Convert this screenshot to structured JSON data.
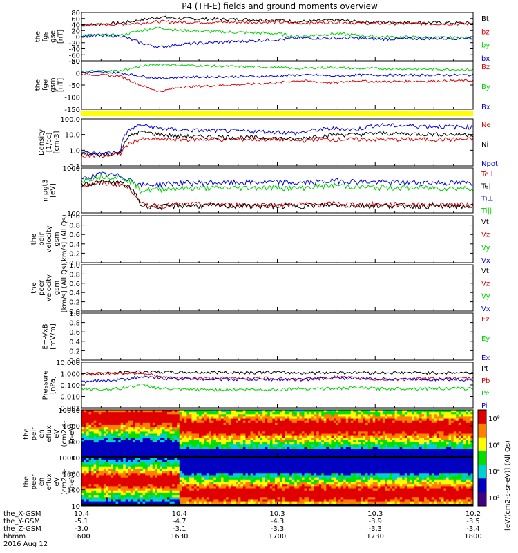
{
  "title": "P4 (TH-E) fields and ground moments overview",
  "colors": {
    "black": "#000000",
    "red": "#e00000",
    "green": "#00d000",
    "blue": "#0000e0",
    "yellow": "#ffff00"
  },
  "panels": [
    {
      "id": "fgs-gse",
      "ylabel_lines": [
        "the",
        "fgs",
        "gse",
        "[nT]"
      ],
      "ticks": [
        "80",
        "60",
        "40",
        "20",
        "0",
        "-20",
        "-40",
        "-60",
        "-80"
      ],
      "legend": [
        {
          "label": "Bt",
          "color": "black"
        },
        {
          "label": "bz",
          "color": "red"
        },
        {
          "label": "by",
          "color": "green"
        },
        {
          "label": "bx",
          "color": "blue"
        }
      ]
    },
    {
      "id": "fge-gsm",
      "ylabel_lines": [
        "the",
        "fge",
        "gsm",
        "[nT]"
      ],
      "ticks": [
        "50",
        "0",
        "-50",
        "-100",
        "-150"
      ],
      "legend": [
        {
          "label": "Bz",
          "color": "red"
        },
        {
          "label": "By",
          "color": "green"
        },
        {
          "label": "Bx",
          "color": "blue"
        }
      ]
    },
    {
      "id": "flag-bar",
      "ylabel_lines": [],
      "ticks": [],
      "legend": []
    },
    {
      "id": "density",
      "ylabel_lines": [
        "Density",
        "[1/cc]",
        "[cm-3]"
      ],
      "ticks": [
        "100.0",
        "10.0",
        "1.0",
        "0.1"
      ],
      "legend": [
        {
          "label": "Ne",
          "color": "red"
        },
        {
          "label": "Ni",
          "color": "black"
        },
        {
          "label": "Npot",
          "color": "blue"
        }
      ]
    },
    {
      "id": "temperature",
      "ylabel_lines": [
        "mpgt3",
        "[eV]"
      ],
      "ticks": [
        "1000",
        "100"
      ],
      "legend": [
        {
          "label": "Te⊥",
          "color": "red"
        },
        {
          "label": "Te||",
          "color": "black"
        },
        {
          "label": "Ti⊥",
          "color": "blue"
        },
        {
          "label": "Ti||",
          "color": "green"
        }
      ]
    },
    {
      "id": "peir-velocity",
      "ylabel_lines": [
        "the",
        "peir",
        "velocity",
        "gsm",
        "[km/s] (All Qs)"
      ],
      "ticks": [
        "1.0",
        "0.8",
        "0.6",
        "0.4",
        "0.2",
        "0.0"
      ],
      "legend": [
        {
          "label": "Vt",
          "color": "black"
        },
        {
          "label": "Vz",
          "color": "red"
        },
        {
          "label": "Vy",
          "color": "green"
        },
        {
          "label": "Vx",
          "color": "blue"
        }
      ]
    },
    {
      "id": "peer-velocity",
      "ylabel_lines": [
        "the",
        "peer",
        "velocity",
        "gsm",
        "[km/s] (All Qs)"
      ],
      "ticks": [
        "1.0",
        "0.8",
        "0.6",
        "0.4",
        "0.2",
        "0.0"
      ],
      "legend": [
        {
          "label": "Vt",
          "color": "black"
        },
        {
          "label": "Vz",
          "color": "red"
        },
        {
          "label": "Vy",
          "color": "green"
        },
        {
          "label": "Vx",
          "color": "blue"
        }
      ]
    },
    {
      "id": "efield",
      "ylabel_lines": [
        "E=-VxB",
        "[mV/m]"
      ],
      "ticks": [
        "1.0",
        "0.8",
        "0.6",
        "0.4",
        "0.2",
        "0.0"
      ],
      "legend": [
        {
          "label": "Ez",
          "color": "red"
        },
        {
          "label": "Ey",
          "color": "green"
        },
        {
          "label": "Ex",
          "color": "blue"
        }
      ]
    },
    {
      "id": "pressure",
      "ylabel_lines": [
        "Pressure",
        "[nPa]"
      ],
      "ticks": [
        "10.000",
        "1.000",
        "0.100",
        "0.010",
        "0.001"
      ],
      "legend": [
        {
          "label": "Pt",
          "color": "black"
        },
        {
          "label": "Pb",
          "color": "red"
        },
        {
          "label": "Pe",
          "color": "green"
        },
        {
          "label": "Pi",
          "color": "blue"
        }
      ]
    },
    {
      "id": "peir-spec",
      "ylabel_lines": [
        "the",
        "peir",
        "en",
        "eflux",
        "eV",
        "(cm2-s-",
        "sr-eV)"
      ],
      "ticks": [
        "10000",
        "1000",
        "100",
        "10"
      ],
      "legend": []
    },
    {
      "id": "peer-spec",
      "ylabel_lines": [
        "the",
        "peer",
        "en",
        "eflux",
        "eV",
        "(cm2-s-",
        "sr-eV)"
      ],
      "ticks": [
        "10000",
        "1000",
        "100",
        "10"
      ],
      "legend": []
    }
  ],
  "colorbar": {
    "ticks": [
      "10⁸",
      "10⁶",
      "10⁴",
      "10²"
    ],
    "label": "[eV/(cm2-s-sr-eV)] (All Qs)"
  },
  "orbit_rows": [
    {
      "label": "the_X-GSM",
      "values": [
        "10.4",
        "10.4",
        "10.3",
        "10.3",
        "10.2"
      ]
    },
    {
      "label": "the_Y-GSM",
      "values": [
        "-5.1",
        "-4.7",
        "-4.3",
        "-3.9",
        "-3.5"
      ]
    },
    {
      "label": "the_Z-GSM",
      "values": [
        "-3.0",
        "-3.1",
        "-3.3",
        "-3.3",
        "-3.4"
      ]
    },
    {
      "label": "hhmm",
      "values": [
        "1600",
        "1630",
        "1700",
        "1730",
        "1800"
      ]
    }
  ],
  "date": "2016 Aug 12",
  "chart_data": {
    "type": "line",
    "title": "P4 (TH-E) fields and ground moments overview",
    "x": [
      "1600",
      "1630",
      "1700",
      "1730",
      "1800"
    ],
    "xlabel": "hhmm",
    "panels": [
      {
        "name": "the fgs gse [nT]",
        "ylim": [
          -80,
          80
        ],
        "series": [
          {
            "name": "Bt",
            "x": [
              1600,
              1610,
              1620,
              1630,
              1640,
              1650,
              1700,
              1710,
              1720,
              1730,
              1740,
              1750,
              1800
            ],
            "values": [
              38,
              42,
              45,
              55,
              65,
              60,
              55,
              50,
              52,
              55,
              50,
              48,
              45
            ]
          },
          {
            "name": "bz",
            "x": [
              1600,
              1610,
              1620,
              1630,
              1640,
              1650,
              1700,
              1710,
              1720,
              1730,
              1740,
              1750,
              1800
            ],
            "values": [
              38,
              40,
              42,
              45,
              50,
              48,
              48,
              45,
              46,
              48,
              45,
              44,
              42
            ]
          },
          {
            "name": "by",
            "x": [
              1600,
              1610,
              1620,
              1630,
              1640,
              1650,
              1700,
              1710,
              1720,
              1730,
              1740,
              1750,
              1800
            ],
            "values": [
              5,
              5,
              4,
              20,
              30,
              20,
              10,
              0,
              5,
              10,
              5,
              0,
              -5
            ]
          },
          {
            "name": "bx",
            "x": [
              1600,
              1610,
              1620,
              1630,
              1640,
              1650,
              1700,
              1710,
              1720,
              1730,
              1740,
              1750,
              1800
            ],
            "values": [
              2,
              3,
              3,
              -20,
              -35,
              -25,
              -10,
              -5,
              -5,
              -5,
              -5,
              -8,
              -5
            ]
          }
        ]
      },
      {
        "name": "the fge gsm [nT]",
        "ylim": [
          -170,
          50
        ],
        "series": [
          {
            "name": "Bz",
            "x": [
              1600,
              1610,
              1620,
              1630,
              1640,
              1650,
              1700,
              1710,
              1720,
              1730,
              1740,
              1750,
              1800
            ],
            "values": [
              -10,
              -15,
              -20,
              -60,
              -90,
              -70,
              -50,
              -40,
              -45,
              -50,
              -40,
              -45,
              -40
            ]
          },
          {
            "name": "By",
            "x": [
              1600,
              1610,
              1620,
              1630,
              1640,
              1650,
              1700,
              1710,
              1720,
              1730,
              1740,
              1750,
              1800
            ],
            "values": [
              0,
              5,
              5,
              25,
              35,
              30,
              20,
              15,
              18,
              20,
              15,
              15,
              10
            ]
          },
          {
            "name": "Bx",
            "x": [
              1600,
              1610,
              1620,
              1630,
              1640,
              1650,
              1700,
              1710,
              1720,
              1730,
              1740,
              1750,
              1800
            ],
            "values": [
              -2,
              -2,
              -5,
              -20,
              -30,
              -25,
              -20,
              -15,
              -15,
              -20,
              -15,
              -15,
              -15
            ]
          }
        ]
      },
      {
        "name": "Density [1/cc] [cm-3]",
        "ylim": [
          0.1,
          100
        ],
        "scale": "log",
        "series": [
          {
            "name": "Ne",
            "x": [
              1600,
              1610,
              1620,
              1630,
              1640,
              1650,
              1700,
              1710,
              1720,
              1730,
              1740,
              1750,
              1800
            ],
            "values": [
              0.5,
              0.4,
              0.6,
              5,
              5,
              5,
              5,
              4,
              5,
              5,
              5,
              5,
              5
            ]
          },
          {
            "name": "Ni",
            "x": [
              1600,
              1610,
              1620,
              1630,
              1640,
              1650,
              1700,
              1710,
              1720,
              1730,
              1740,
              1750,
              1800
            ],
            "values": [
              0.6,
              0.5,
              0.7,
              15,
              10,
              8,
              6,
              5,
              8,
              10,
              10,
              12,
              10
            ]
          },
          {
            "name": "Npot",
            "x": [
              1600,
              1610,
              1620,
              1630,
              1640,
              1650,
              1700,
              1710,
              1720,
              1730,
              1740,
              1750,
              1800
            ],
            "values": [
              0.7,
              0.6,
              0.8,
              40,
              25,
              20,
              15,
              12,
              20,
              25,
              20,
              40,
              30
            ]
          }
        ]
      },
      {
        "name": "mpgt3 [eV]",
        "ylim": [
          30,
          5000
        ],
        "scale": "log",
        "series": [
          {
            "name": "Te⊥",
            "x": [
              1600,
              1610,
              1620,
              1630,
              1640,
              1650,
              1700,
              1710,
              1720,
              1730,
              1740,
              1750,
              1800
            ],
            "values": [
              700,
              900,
              800,
              80,
              70,
              80,
              75,
              80,
              80,
              85,
              80,
              80,
              75
            ]
          },
          {
            "name": "Te||",
            "x": [
              1600,
              1610,
              1620,
              1630,
              1640,
              1650,
              1700,
              1710,
              1720,
              1730,
              1740,
              1750,
              1800
            ],
            "values": [
              800,
              1000,
              900,
              70,
              60,
              70,
              65,
              70,
              70,
              75,
              70,
              70,
              65
            ]
          },
          {
            "name": "Ti⊥",
            "x": [
              1600,
              1610,
              1620,
              1630,
              1640,
              1650,
              1700,
              1710,
              1720,
              1730,
              1740,
              1750,
              1800
            ],
            "values": [
              1500,
              2500,
              2000,
              700,
              800,
              900,
              1000,
              900,
              1000,
              1200,
              1100,
              1000,
              900
            ]
          },
          {
            "name": "Ti||",
            "x": [
              1600,
              1610,
              1620,
              1630,
              1640,
              1650,
              1700,
              1710,
              1720,
              1730,
              1740,
              1750,
              1800
            ],
            "values": [
              1200,
              2000,
              1800,
              400,
              450,
              500,
              550,
              500,
              600,
              700,
              600,
              550,
              500
            ]
          }
        ]
      },
      {
        "name": "Pressure [nPa]",
        "ylim": [
          0.001,
          10
        ],
        "scale": "log",
        "series": [
          {
            "name": "Pt",
            "x": [
              1600,
              1610,
              1620,
              1630,
              1640,
              1650,
              1700,
              1710,
              1720,
              1730,
              1740,
              1750,
              1800
            ],
            "values": [
              1.0,
              1.1,
              1.2,
              1.5,
              1.4,
              1.3,
              1.3,
              1.2,
              1.2,
              1.3,
              1.3,
              1.2,
              1.2
            ]
          },
          {
            "name": "Pb",
            "x": [
              1600,
              1610,
              1620,
              1630,
              1640,
              1650,
              1700,
              1710,
              1720,
              1730,
              1740,
              1750,
              1800
            ],
            "values": [
              0.9,
              1.0,
              1.1,
              1.2,
              0.5,
              0.4,
              0.4,
              0.3,
              0.4,
              0.5,
              0.4,
              0.3,
              0.4
            ]
          },
          {
            "name": "Pe",
            "x": [
              1600,
              1610,
              1620,
              1630,
              1640,
              1650,
              1700,
              1710,
              1720,
              1730,
              1740,
              1750,
              1800
            ],
            "values": [
              0.05,
              0.04,
              0.05,
              0.1,
              0.05,
              0.04,
              0.04,
              0.05,
              0.05,
              0.05,
              0.06,
              0.05,
              0.05
            ]
          },
          {
            "name": "Pi",
            "x": [
              1600,
              1610,
              1620,
              1630,
              1640,
              1650,
              1700,
              1710,
              1720,
              1730,
              1740,
              1750,
              1800
            ],
            "values": [
              0.2,
              0.25,
              0.3,
              0.5,
              0.4,
              0.35,
              0.3,
              0.3,
              0.35,
              0.4,
              0.4,
              0.35,
              0.3
            ]
          }
        ]
      }
    ]
  }
}
